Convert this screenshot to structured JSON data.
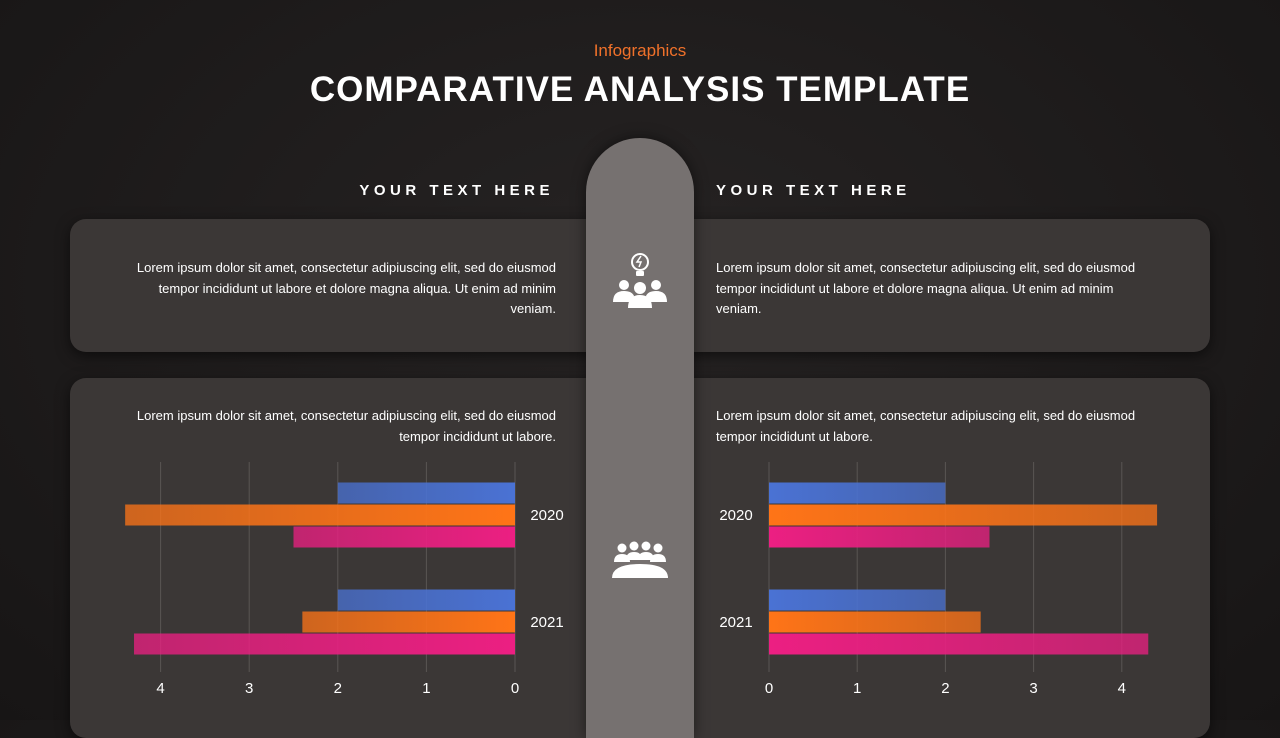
{
  "header": {
    "subtitle": "Infographics",
    "title": "COMPARATIVE ANALYSIS TEMPLATE"
  },
  "panels": [
    {
      "heading": "YOUR TEXT HERE",
      "text": "Lorem ipsum dolor sit amet, consectetur adipiuscing elit, sed do eiusmod tempor incididunt ut labore et dolore magna aliqua. Ut enim ad minim veniam.",
      "chart_text": "Lorem ipsum dolor sit amet, consectetur adipiuscing elit, sed do eiusmod tempor incididunt ut labore."
    },
    {
      "heading": "YOUR TEXT HERE",
      "text": "Lorem ipsum dolor sit amet, consectetur adipiuscing elit, sed do eiusmod tempor incididunt ut labore et dolore magna aliqua. Ut enim ad minim veniam.",
      "chart_text": "Lorem ipsum dolor sit amet, consectetur adipiuscing elit, sed do eiusmod tempor incididunt ut labore."
    }
  ],
  "chart_data": [
    {
      "type": "bar",
      "orientation": "horizontal",
      "categories": [
        "2020",
        "2021"
      ],
      "series": [
        {
          "color": "#4a72d4",
          "values": [
            2,
            2
          ]
        },
        {
          "color": "#ff7417",
          "values": [
            4.4,
            2.4
          ]
        },
        {
          "color": "#ec1f82",
          "values": [
            2.5,
            4.3
          ]
        }
      ],
      "xlim": [
        0,
        5
      ],
      "xticks": [
        0,
        1,
        2,
        3,
        4
      ],
      "x_reversed": true,
      "grid": true
    },
    {
      "type": "bar",
      "orientation": "horizontal",
      "categories": [
        "2020",
        "2021"
      ],
      "series": [
        {
          "color": "#4a72d4",
          "values": [
            2,
            2
          ]
        },
        {
          "color": "#ff7417",
          "values": [
            4.4,
            2.4
          ]
        },
        {
          "color": "#ec1f82",
          "values": [
            2.5,
            4.3
          ]
        }
      ],
      "xlim": [
        0,
        5
      ],
      "xticks": [
        0,
        1,
        2,
        3,
        4
      ],
      "x_reversed": false,
      "grid": true
    }
  ]
}
